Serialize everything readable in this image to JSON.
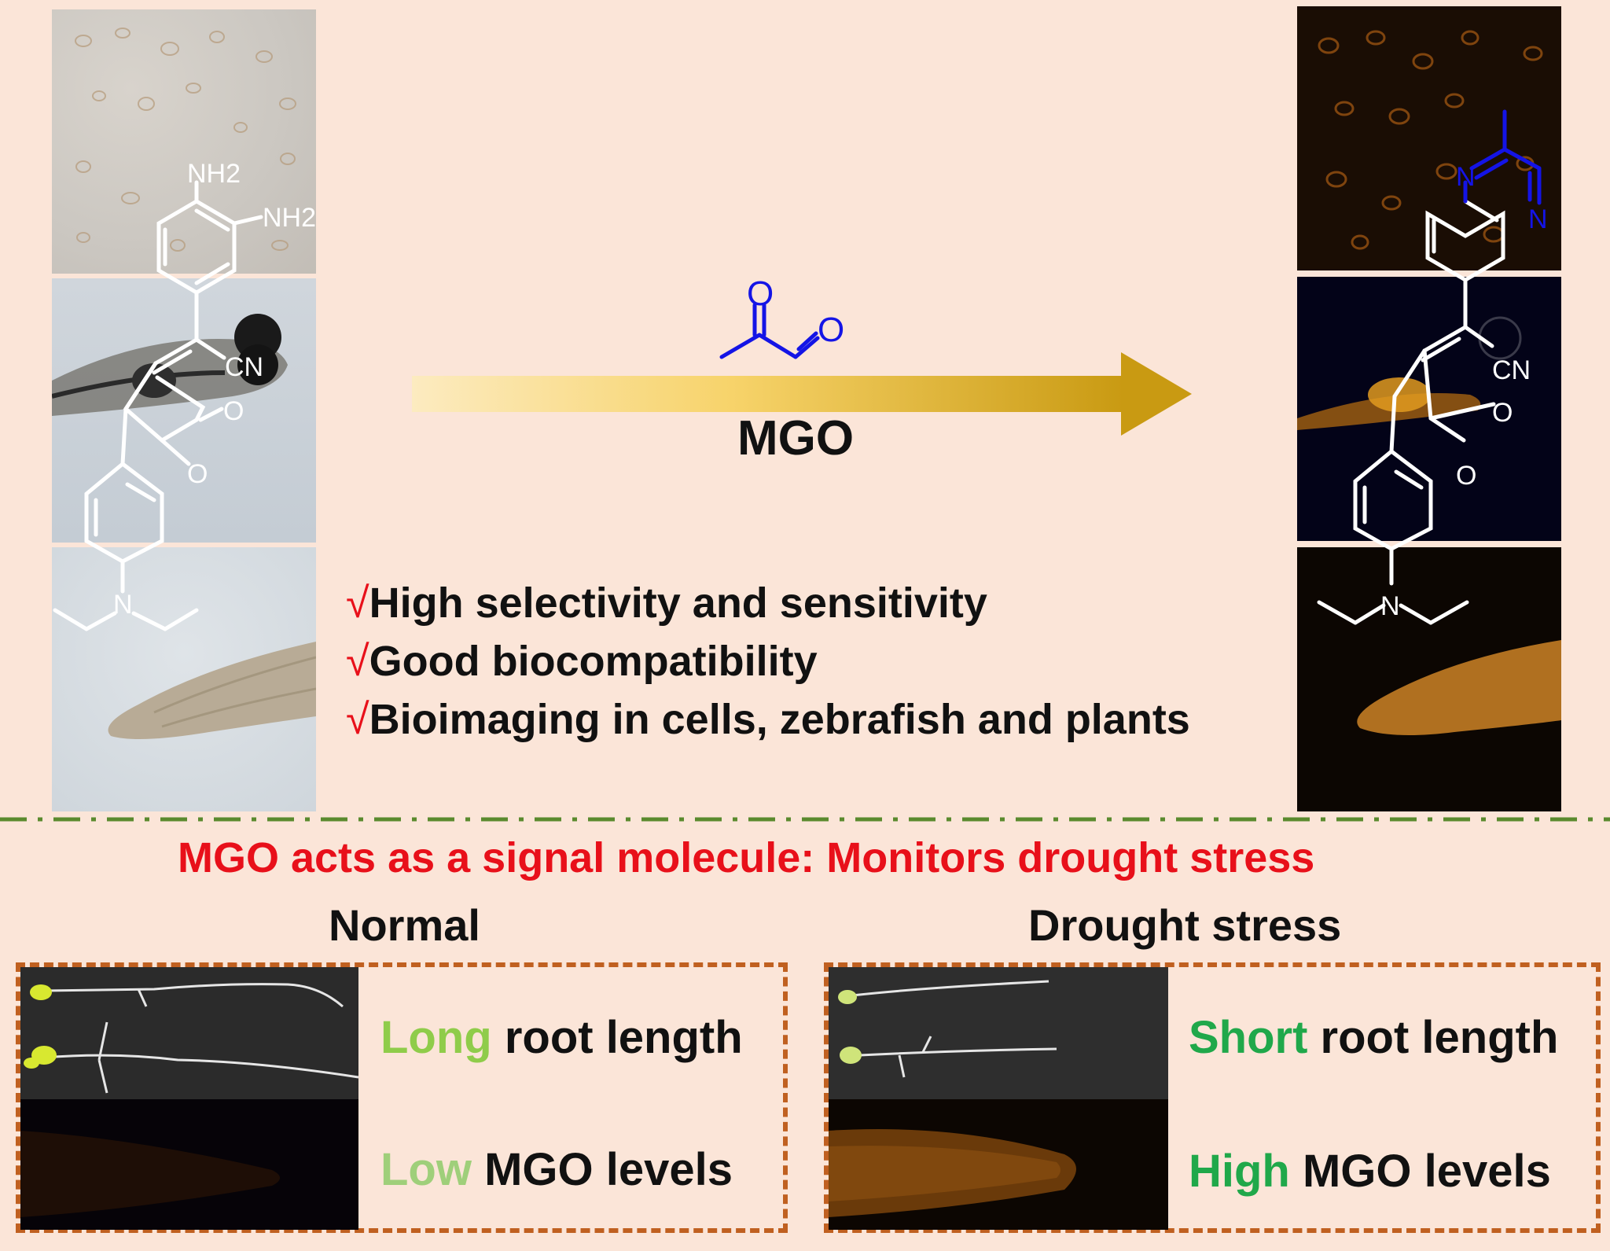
{
  "reaction": {
    "reagent_label": "MGO",
    "reagent_atoms": [
      "O",
      "O"
    ]
  },
  "probe": {
    "atoms": [
      "NH2",
      "NH2",
      "CN",
      "O",
      "O",
      "N"
    ]
  },
  "product": {
    "atoms": [
      "N",
      "N",
      "CN",
      "O",
      "O",
      "N"
    ]
  },
  "features": [
    {
      "check": "√",
      "text": "High selectivity and sensitivity"
    },
    {
      "check": "√",
      "text": "Good biocompatibility"
    },
    {
      "check": "√",
      "text": "Bioimaging in cells, zebrafish and plants"
    }
  ],
  "signal_title": "MGO acts as a signal molecule: Monitors drought stress",
  "normal": {
    "heading": "Normal",
    "root_highlight": "Long",
    "root_rest": " root length",
    "mgo_highlight": "Low",
    "mgo_rest": " MGO levels"
  },
  "drought": {
    "heading": "Drought stress",
    "root_highlight": "Short",
    "root_rest": " root length",
    "mgo_highlight": "High",
    "mgo_rest": " MGO levels"
  },
  "colors": {
    "background": "#fbe5d8",
    "title_red": "#e8101a",
    "reagent_blue": "#1010e0",
    "light_green": "#8fcc4a",
    "pale_green": "#9fcf7a",
    "dark_green": "#20a84a",
    "divider_green": "#5a8a2e",
    "box_orange": "#c06020",
    "arrow_gold": "#d4a017"
  }
}
